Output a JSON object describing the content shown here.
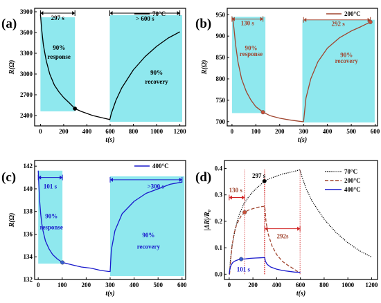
{
  "colors": {
    "shade": "#8fe8ee",
    "black": "#000000",
    "brown": "#a0452f",
    "blue": "#1a1acc",
    "red": "#d02020",
    "dot_brown": "#c8503a",
    "dot_blue": "#3a5fcf"
  },
  "chart_data": [
    {
      "type": "line",
      "panel": "(a)",
      "legend": "70°C",
      "legend_position": "top-right",
      "xlabel": "t(s)",
      "ylabel": "R(Ω)",
      "xlim": [
        -50,
        1250
      ],
      "ylim": [
        2250,
        3950
      ],
      "xticks": [
        0,
        200,
        400,
        600,
        800,
        1000,
        1200
      ],
      "yticks": [
        2400,
        2700,
        3000,
        3300,
        3600,
        3900
      ],
      "series": [
        {
          "name": "70°C",
          "x": [
            0,
            10,
            25,
            50,
            80,
            120,
            160,
            200,
            250,
            297,
            350,
            400,
            450,
            500,
            550,
            590,
            597,
            610,
            650,
            700,
            800,
            900,
            1000,
            1100,
            1200
          ],
          "y": [
            3860,
            3650,
            3420,
            3190,
            3000,
            2840,
            2740,
            2660,
            2580,
            2500,
            2460,
            2430,
            2400,
            2380,
            2360,
            2345,
            2340,
            2430,
            2620,
            2800,
            3060,
            3250,
            3400,
            3520,
            3610
          ]
        }
      ],
      "points": [
        {
          "x": 297,
          "y": 2500
        }
      ],
      "shaded": [
        {
          "x0": 0,
          "x1": 297,
          "y0": 2460,
          "y1": 3820
        },
        {
          "x0": 597,
          "x1": 1220,
          "y0": 2310,
          "y1": 3850
        }
      ],
      "annotations": [
        {
          "text": "297 s",
          "x": 148,
          "y": 3810
        },
        {
          "text": "90%",
          "x": 160,
          "y": 3380
        },
        {
          "text": "response",
          "x": 160,
          "y": 3250
        },
        {
          "text": "> 600 s",
          "x": 900,
          "y": 3800
        },
        {
          "text": "90%",
          "x": 1000,
          "y": 3020
        },
        {
          "text": "recovery",
          "x": 1000,
          "y": 2890
        }
      ],
      "arrows": [
        {
          "x0": 0,
          "x1": 297,
          "y": 3880
        },
        {
          "x0": 597,
          "x1": 1200,
          "y": 3880
        }
      ]
    },
    {
      "type": "line",
      "panel": "(b)",
      "legend": "200°C",
      "legend_position": "top-right",
      "xlabel": "t(s)",
      "ylabel": "R(Ω)",
      "xlim": [
        -20,
        610
      ],
      "ylim": [
        690,
        965
      ],
      "xticks": [
        0,
        100,
        200,
        300,
        400,
        500,
        600
      ],
      "yticks": [
        700,
        750,
        800,
        850,
        900,
        950
      ],
      "series": [
        {
          "name": "200°C",
          "x": [
            0,
            3,
            8,
            15,
            25,
            40,
            60,
            80,
            100,
            130,
            160,
            200,
            240,
            280,
            295,
            300,
            310,
            330,
            360,
            400,
            450,
            500,
            540,
            580
          ],
          "y": [
            942,
            942,
            920,
            880,
            840,
            800,
            770,
            750,
            735,
            722,
            714,
            708,
            704,
            701,
            700,
            700,
            755,
            800,
            840,
            872,
            896,
            912,
            922,
            933
          ]
        }
      ],
      "points": [
        {
          "x": 130,
          "y": 722
        },
        {
          "x": 580,
          "y": 933
        }
      ],
      "shaded": [
        {
          "x0": 0,
          "x1": 140,
          "y0": 720,
          "y1": 945
        },
        {
          "x0": 295,
          "x1": 598,
          "y0": 698,
          "y1": 938
        }
      ],
      "annotations": [
        {
          "text": "130 s",
          "x": 65,
          "y": 930
        },
        {
          "text": "90%",
          "x": 80,
          "y": 872
        },
        {
          "text": "response",
          "x": 80,
          "y": 858
        },
        {
          "text": "292 s",
          "x": 445,
          "y": 929
        },
        {
          "text": "90%",
          "x": 480,
          "y": 856
        },
        {
          "text": "recovery",
          "x": 480,
          "y": 842
        }
      ],
      "arrows": [
        {
          "x0": 0,
          "x1": 130,
          "y": 940
        },
        {
          "x0": 300,
          "x1": 580,
          "y": 938
        }
      ]
    },
    {
      "type": "line",
      "panel": "(c)",
      "legend": "400°C",
      "legend_position": "top-right",
      "xlabel": "t(s)",
      "ylabel": "R(Ω)",
      "xlim": [
        -15,
        615
      ],
      "ylim": [
        132,
        142.5
      ],
      "xticks": [
        0,
        100,
        200,
        300,
        400,
        500,
        600
      ],
      "yticks": [
        132,
        134,
        136,
        138,
        140,
        142
      ],
      "series": [
        {
          "name": "400°C",
          "x": [
            0,
            3,
            6,
            10,
            15,
            20,
            30,
            45,
            60,
            80,
            101,
            140,
            180,
            220,
            260,
            295,
            300,
            305,
            320,
            350,
            400,
            450,
            500,
            550,
            600
          ],
          "y": [
            141.6,
            140.2,
            138.9,
            137.8,
            136.9,
            136.3,
            135.4,
            134.7,
            134.2,
            133.8,
            133.5,
            133.3,
            133.1,
            133.0,
            132.8,
            132.7,
            132.7,
            134.6,
            136.3,
            137.8,
            138.9,
            139.6,
            140.0,
            140.4,
            140.6
          ]
        }
      ],
      "points": [
        {
          "x": 101,
          "y": 133.5
        }
      ],
      "shaded": [
        {
          "x0": 0,
          "x1": 101,
          "y0": 133.4,
          "y1": 141.6
        },
        {
          "x0": 300,
          "x1": 610,
          "y0": 132.3,
          "y1": 141.1
        }
      ],
      "annotations": [
        {
          "text": "101 s",
          "x": 50,
          "y": 140.2
        },
        {
          "text": "90%",
          "x": 55,
          "y": 137.6
        },
        {
          "text": "response",
          "x": 55,
          "y": 136.6
        },
        {
          "text": ">300 s",
          "x": 490,
          "y": 140.2
        },
        {
          "text": "90%",
          "x": 460,
          "y": 135.9
        },
        {
          "text": "recovery",
          "x": 460,
          "y": 134.9
        }
      ],
      "arrows": [
        {
          "x0": 0,
          "x1": 101,
          "y": 141.0
        },
        {
          "x0": 300,
          "x1": 600,
          "y": 140.8
        }
      ]
    },
    {
      "type": "line",
      "panel": "(d)",
      "xlabel": "t(s)",
      "ylabel": "|ΔR|/R₀",
      "xlim": [
        -40,
        1250
      ],
      "ylim": [
        -0.02,
        0.43
      ],
      "xticks": [
        0,
        200,
        400,
        600,
        800,
        1000,
        1200
      ],
      "yticks": [
        0.0,
        0.1,
        0.2,
        0.3,
        0.4
      ],
      "legend_position": "top-right",
      "series": [
        {
          "name": "70°C",
          "style": "dotted",
          "x": [
            0,
            10,
            25,
            50,
            80,
            120,
            160,
            200,
            250,
            297,
            350,
            400,
            450,
            500,
            550,
            597,
            610,
            650,
            700,
            800,
            900,
            1000,
            1100,
            1200
          ],
          "y": [
            0,
            0.053,
            0.11,
            0.17,
            0.22,
            0.263,
            0.29,
            0.312,
            0.333,
            0.352,
            0.363,
            0.371,
            0.379,
            0.384,
            0.389,
            0.395,
            0.372,
            0.322,
            0.275,
            0.208,
            0.158,
            0.119,
            0.088,
            0.065
          ]
        },
        {
          "name": "200°C",
          "style": "dashed",
          "x": [
            0,
            3,
            8,
            15,
            25,
            40,
            60,
            80,
            100,
            130,
            160,
            200,
            240,
            280,
            300,
            310,
            330,
            360,
            400,
            450,
            500,
            540,
            580,
            597
          ],
          "y": [
            0,
            0.0,
            0.023,
            0.066,
            0.108,
            0.151,
            0.183,
            0.204,
            0.22,
            0.234,
            0.242,
            0.248,
            0.253,
            0.256,
            0.257,
            0.198,
            0.15,
            0.108,
            0.074,
            0.048,
            0.032,
            0.021,
            0.009,
            0.006
          ]
        },
        {
          "name": "400°C",
          "style": "solid",
          "x": [
            0,
            3,
            6,
            10,
            15,
            20,
            30,
            45,
            60,
            80,
            101,
            140,
            180,
            220,
            260,
            300,
            305,
            320,
            350,
            400,
            450,
            500,
            550,
            600
          ],
          "y": [
            0,
            0.01,
            0.019,
            0.027,
            0.033,
            0.037,
            0.044,
            0.049,
            0.052,
            0.055,
            0.057,
            0.058,
            0.06,
            0.061,
            0.062,
            0.063,
            0.049,
            0.037,
            0.027,
            0.019,
            0.014,
            0.011,
            0.008,
            0.007
          ]
        }
      ],
      "points": [
        {
          "x": 297,
          "y": 0.352,
          "series": "70°C"
        },
        {
          "x": 130,
          "y": 0.234,
          "series": "200°C"
        },
        {
          "x": 101,
          "y": 0.057,
          "series": "400°C"
        }
      ],
      "annotations": [
        {
          "text": "130 s",
          "x": 55,
          "y": 0.318
        },
        {
          "text": "297 s",
          "x": 250,
          "y": 0.373
        },
        {
          "text": "292s",
          "x": 450,
          "y": 0.143
        },
        {
          "text": "101 s",
          "x": 120,
          "y": 0.018
        }
      ],
      "arrows": [
        {
          "x0": 0,
          "x1": 130,
          "y": 0.29
        },
        {
          "x0": 300,
          "x1": 597,
          "y": 0.172
        }
      ],
      "vlines": [
        130,
        297,
        300,
        597
      ]
    }
  ]
}
